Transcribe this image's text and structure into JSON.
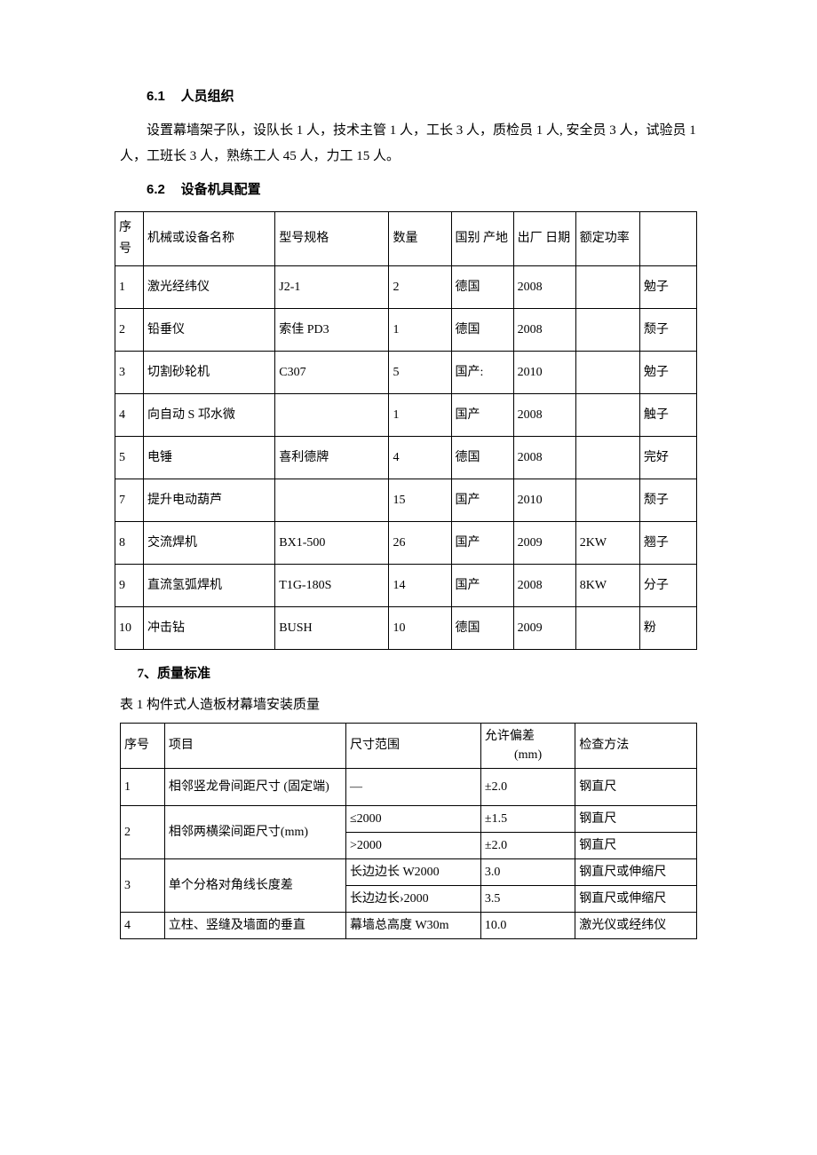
{
  "section61": {
    "num": "6.1",
    "title": "人员组织",
    "paragraph": "设置幕墙架子队，设队长 1 人，技术主管 1 人，工长 3 人，质检员 1 人, 安全员 3 人，试验员 1 人，工班长 3 人，熟练工人 45 人，力工 15 人。"
  },
  "section62": {
    "num": "6.2",
    "title": "设备机具配置"
  },
  "equipTable": {
    "headers": {
      "c0": "序 号",
      "c1": "机械或设备名称",
      "c2": "型号规格",
      "c3": "数量",
      "c4": "国别 产地",
      "c5": "出厂 日期",
      "c6": "额定功率",
      "c7": ""
    },
    "rows": [
      [
        "1",
        "激光经纬仪",
        "J2-1",
        "2",
        "德国",
        "2008",
        "",
        "勉子"
      ],
      [
        "2",
        "铅垂仪",
        "索佳 PD3",
        "1",
        "德国",
        "2008",
        "",
        "颓子"
      ],
      [
        "3",
        "切割砂轮机",
        "C307",
        "5",
        "国产:",
        "2010",
        "",
        "勉子"
      ],
      [
        "4",
        "向自动 S 邛水微",
        "",
        "1",
        "国产",
        "2008",
        "",
        "触子"
      ],
      [
        "5",
        "电锤",
        "喜利德牌",
        "4",
        "德国",
        "2008",
        "",
        "完好"
      ],
      [
        "7",
        "提升电动葫芦",
        "",
        "15",
        "国产",
        "2010",
        "",
        "颓子"
      ],
      [
        "8",
        "交流焊机",
        "BX1-500",
        "26",
        "国产",
        "2009",
        "2KW",
        "翘子"
      ],
      [
        "9",
        "直流氢弧焊机",
        "T1G-180S",
        "14",
        "国产",
        "2008",
        "8KW",
        "分子"
      ],
      [
        "10",
        "冲击钻",
        "BUSH",
        "10",
        "德国",
        "2009",
        "",
        "粉"
      ]
    ]
  },
  "section7": {
    "title": "7、质量标准",
    "caption": "表 1 构件式人造板材幕墙安装质量"
  },
  "qualTable": {
    "headers": {
      "c0": "序号",
      "c1": "项目",
      "c2": "尺寸范围",
      "c3a": "允许偏差",
      "c3b": "(mm)",
      "c4": "检查方法"
    },
    "r1": {
      "no": "1",
      "item": "相邻竖龙骨间距尺寸 (固定端)",
      "range": "—",
      "dev": "±2.0",
      "method": "钢直尺"
    },
    "r2": {
      "no": "2",
      "item": "相邻两横梁间距尺寸(mm)",
      "a": {
        "range": "≤2000",
        "dev": "±1.5",
        "method": "钢直尺"
      },
      "b": {
        "range": ">2000",
        "dev": "±2.0",
        "method": "钢直尺"
      }
    },
    "r3": {
      "no": "3",
      "item": "单个分格对角线长度差",
      "a": {
        "range": "长边边长 W2000",
        "dev": "3.0",
        "method": "钢直尺或伸缩尺"
      },
      "b": {
        "range": "长边边长›2000",
        "dev": "3.5",
        "method": "钢直尺或伸缩尺"
      }
    },
    "r4": {
      "no": "4",
      "item": "立柱、竖缝及墙面的垂直",
      "range": "幕墙总高度 W30m",
      "dev": "10.0",
      "method": "激光仪或经纬仪"
    }
  }
}
